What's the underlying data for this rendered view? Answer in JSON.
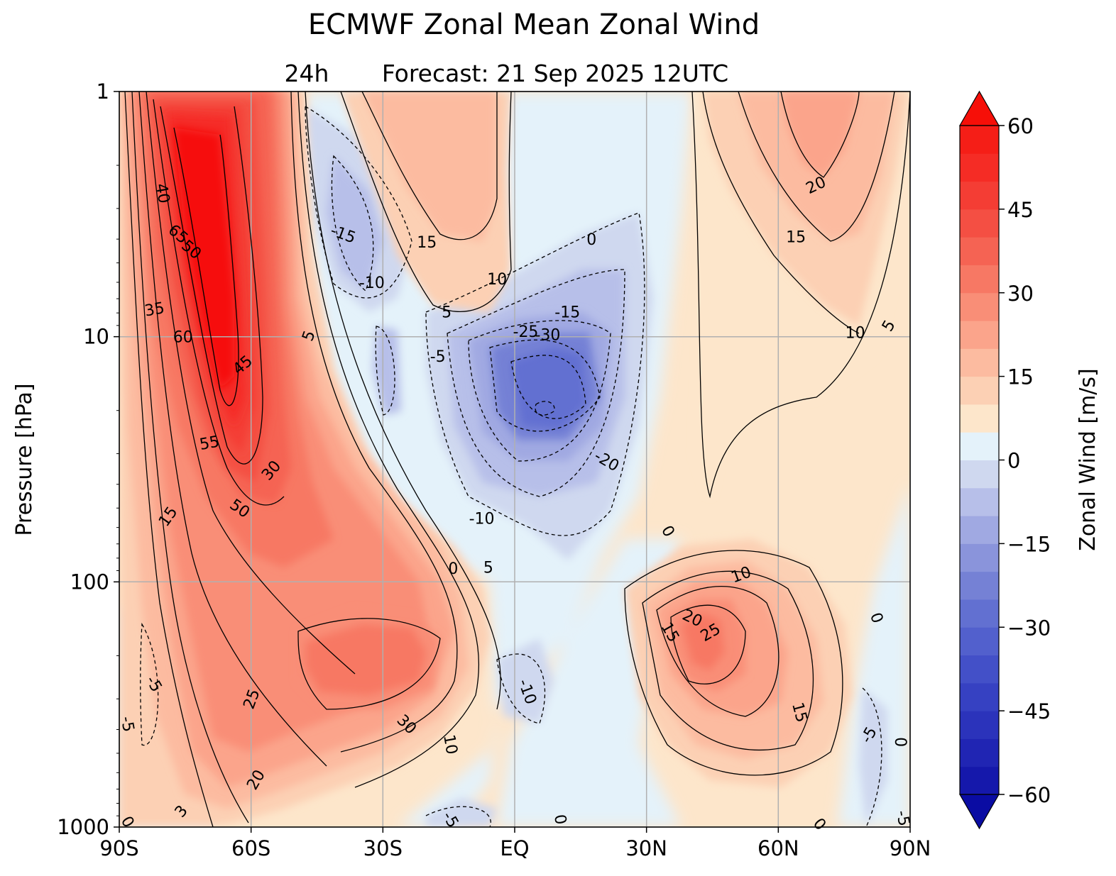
{
  "chart_data": {
    "type": "contour",
    "title": "ECMWF Zonal Mean Zonal Wind",
    "subtitle_prefix": "24h",
    "subtitle": "Forecast:  21 Sep 2025  12UTC",
    "xlabel": "",
    "ylabel": "Pressure [hPa]",
    "x_range": [
      -90,
      90
    ],
    "y_range_hPa": [
      1000,
      1
    ],
    "y_scale": "log",
    "x_ticks": [
      {
        "value": -90,
        "label": "90S"
      },
      {
        "value": -60,
        "label": "60S"
      },
      {
        "value": -30,
        "label": "30S"
      },
      {
        "value": 0,
        "label": "EQ"
      },
      {
        "value": 30,
        "label": "30N"
      },
      {
        "value": 60,
        "label": "60N"
      },
      {
        "value": 90,
        "label": "90N"
      }
    ],
    "y_ticks": [
      {
        "value": 1,
        "label": "1"
      },
      {
        "value": 10,
        "label": "10"
      },
      {
        "value": 100,
        "label": "100"
      },
      {
        "value": 1000,
        "label": "1000"
      }
    ],
    "grid": true,
    "colorbar": {
      "label": "Zonal Wind [m/s]",
      "range": [
        -60,
        60
      ],
      "level_step": 5,
      "extend": "both",
      "ticks": [
        {
          "value": 60,
          "label": "60"
        },
        {
          "value": 45,
          "label": "45"
        },
        {
          "value": 30,
          "label": "30"
        },
        {
          "value": 15,
          "label": "15"
        },
        {
          "value": 0,
          "label": "0"
        },
        {
          "value": -15,
          "label": "−15"
        },
        {
          "value": -30,
          "label": "−30"
        },
        {
          "value": -45,
          "label": "−45"
        },
        {
          "value": -60,
          "label": "−60"
        }
      ],
      "colors": [
        "#0a0ca3",
        "#1518ab",
        "#2025b3",
        "#2b33bb",
        "#3641c2",
        "#4350c8",
        "#5260cd",
        "#6270d1",
        "#7581d5",
        "#8a94db",
        "#a0a9e2",
        "#b7bfe9",
        "#cfd8ef",
        "#e4f2fa",
        "#fde6cb",
        "#fcd0b4",
        "#fcbba0",
        "#fba48b",
        "#f98e77",
        "#f77864",
        "#f56353",
        "#f44f43",
        "#f43d34",
        "#f52c25",
        "#f51e17",
        "#f60f08"
      ]
    },
    "features": [
      {
        "name": "SH polar night jet core",
        "lat": -73,
        "pressure_hPa": 6,
        "value": 65
      },
      {
        "name": "SH subtropical jet",
        "lat": -40,
        "pressure_hPa": 200,
        "value": 32
      },
      {
        "name": "NH subtropical jet",
        "lat": 43,
        "pressure_hPa": 200,
        "value": 27
      },
      {
        "name": "NH upper stratospheric westerlies",
        "lat": 62,
        "pressure_hPa": 1.5,
        "value": 22
      },
      {
        "name": "Tropical easterly minimum",
        "lat": 7,
        "pressure_hPa": 17,
        "value": -33
      },
      {
        "name": "SH stratospheric easterlies",
        "lat": -35,
        "pressure_hPa": 5,
        "value": -17
      }
    ],
    "contour_labels": [
      {
        "text": "40",
        "lat": -80,
        "p": 2.6,
        "rot": 80
      },
      {
        "text": "65",
        "lat": -76.5,
        "p": 3.8,
        "rot": 40
      },
      {
        "text": "50",
        "lat": -73.5,
        "p": 4.4,
        "rot": 40
      },
      {
        "text": "35",
        "lat": -82,
        "p": 7.7,
        "rot": -10
      },
      {
        "text": "60",
        "lat": -75.5,
        "p": 10,
        "rot": 0
      },
      {
        "text": "5",
        "lat": -47,
        "p": 9.9,
        "rot": -70
      },
      {
        "text": "45",
        "lat": -62,
        "p": 13,
        "rot": -40
      },
      {
        "text": "55",
        "lat": -69.5,
        "p": 27,
        "rot": -10
      },
      {
        "text": "30",
        "lat": -55.5,
        "p": 35,
        "rot": -50
      },
      {
        "text": "50",
        "lat": -62.5,
        "p": 50,
        "rot": 35
      },
      {
        "text": "15",
        "lat": -79,
        "p": 54,
        "rot": -55
      },
      {
        "text": "-15",
        "lat": -39,
        "p": 3.8,
        "rot": 20
      },
      {
        "text": "-10",
        "lat": -32.5,
        "p": 6,
        "rot": 0
      },
      {
        "text": "15",
        "lat": -20,
        "p": 4.1,
        "rot": 0
      },
      {
        "text": "10",
        "lat": -4,
        "p": 5.8,
        "rot": 0
      },
      {
        "text": "0",
        "lat": 17.5,
        "p": 4,
        "rot": 0
      },
      {
        "text": "5",
        "lat": -15.5,
        "p": 7.9,
        "rot": 0
      },
      {
        "text": "-15",
        "lat": 12,
        "p": 7.9,
        "rot": 0
      },
      {
        "text": "-25",
        "lat": 2.5,
        "p": 9.5,
        "rot": 0
      },
      {
        "text": "-30",
        "lat": 7.5,
        "p": 9.8,
        "rot": 0
      },
      {
        "text": "-5",
        "lat": -17.5,
        "p": 12,
        "rot": 0
      },
      {
        "text": "-20",
        "lat": 21,
        "p": 32,
        "rot": 30
      },
      {
        "text": "-10",
        "lat": -7.5,
        "p": 55,
        "rot": 0
      },
      {
        "text": "0",
        "lat": -14,
        "p": 88,
        "rot": 0
      },
      {
        "text": "5",
        "lat": -6,
        "p": 87,
        "rot": 0
      },
      {
        "text": "20",
        "lat": 68.5,
        "p": 2.4,
        "rot": -25
      },
      {
        "text": "15",
        "lat": 64,
        "p": 3.9,
        "rot": 0
      },
      {
        "text": "5",
        "lat": 85,
        "p": 9,
        "rot": -60
      },
      {
        "text": "10",
        "lat": 77.5,
        "p": 9.6,
        "rot": 0
      },
      {
        "text": "0",
        "lat": 35,
        "p": 62,
        "rot": 60
      },
      {
        "text": "10",
        "lat": 51.5,
        "p": 93,
        "rot": -20
      },
      {
        "text": "20",
        "lat": 40.5,
        "p": 140,
        "rot": 25
      },
      {
        "text": "15",
        "lat": 35.5,
        "p": 160,
        "rot": 60
      },
      {
        "text": "25",
        "lat": 44.5,
        "p": 160,
        "rot": -30
      },
      {
        "text": "15",
        "lat": 65,
        "p": 340,
        "rot": 75
      },
      {
        "text": "10",
        "lat": -14.5,
        "p": 460,
        "rot": 80
      },
      {
        "text": "30",
        "lat": -24.5,
        "p": 380,
        "rot": 45
      },
      {
        "text": "25",
        "lat": -60,
        "p": 300,
        "rot": -70
      },
      {
        "text": "20",
        "lat": -59,
        "p": 640,
        "rot": -60
      },
      {
        "text": "-5",
        "lat": -82,
        "p": 260,
        "rot": 60
      },
      {
        "text": "-5",
        "lat": -88,
        "p": 380,
        "rot": 80
      },
      {
        "text": "-10",
        "lat": 3,
        "p": 280,
        "rot": 70
      },
      {
        "text": "0",
        "lat": -88,
        "p": 950,
        "rot": 60
      },
      {
        "text": "3",
        "lat": -76,
        "p": 860,
        "rot": -50
      },
      {
        "text": "-5",
        "lat": -14.5,
        "p": 930,
        "rot": 60
      },
      {
        "text": "0",
        "lat": 10.5,
        "p": 930,
        "rot": 80
      },
      {
        "text": "0",
        "lat": 69.5,
        "p": 970,
        "rot": 50
      },
      {
        "text": "-5",
        "lat": 80.5,
        "p": 420,
        "rot": -60
      },
      {
        "text": "0",
        "lat": 88,
        "p": 450,
        "rot": -90
      },
      {
        "text": "0",
        "lat": 82.5,
        "p": 140,
        "rot": 70
      },
      {
        "text": "-5",
        "lat": 88.5,
        "p": 920,
        "rot": 80
      }
    ]
  }
}
